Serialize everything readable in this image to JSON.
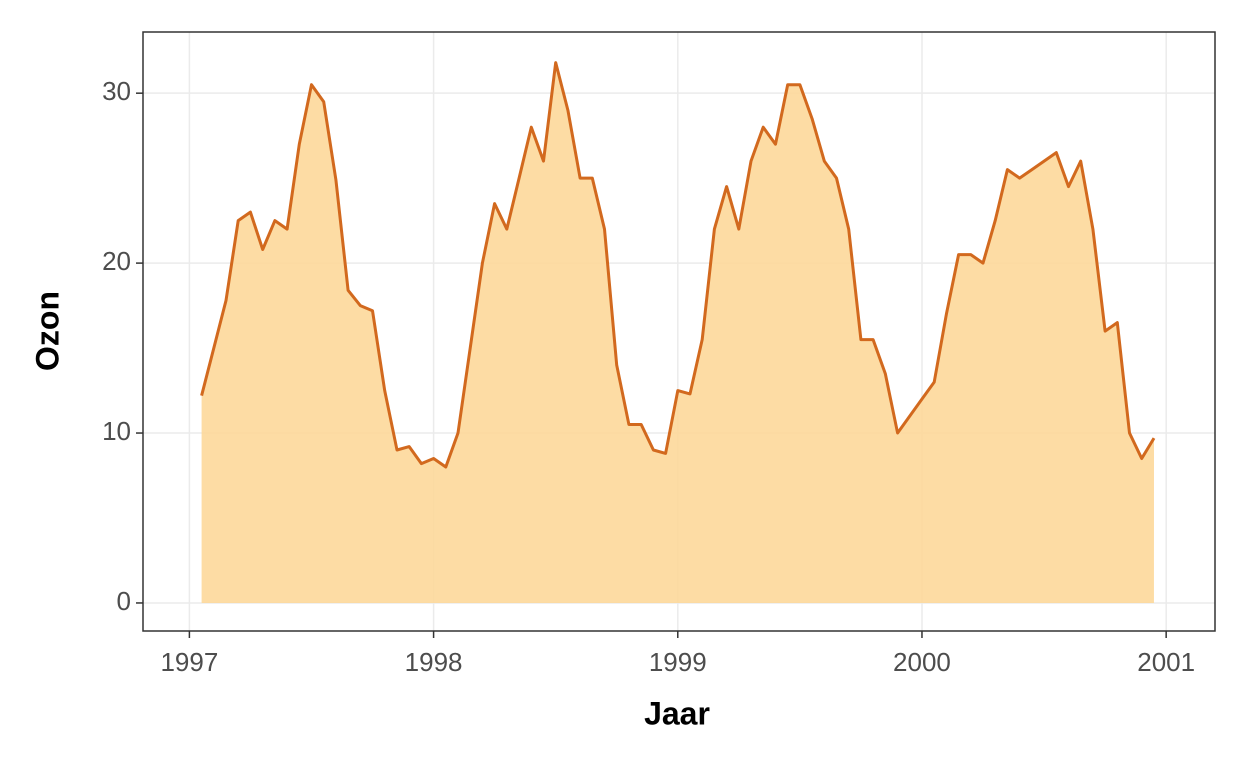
{
  "chart_data": {
    "type": "area",
    "x_label": "Jaar",
    "y_label": "Ozon",
    "x": [
      1997.05,
      1997.1,
      1997.15,
      1997.2,
      1997.25,
      1997.3,
      1997.35,
      1997.4,
      1997.45,
      1997.5,
      1997.55,
      1997.6,
      1997.65,
      1997.7,
      1997.75,
      1997.8,
      1997.85,
      1997.9,
      1997.95,
      1998.0,
      1998.05,
      1998.1,
      1998.15,
      1998.2,
      1998.25,
      1998.3,
      1998.35,
      1998.4,
      1998.45,
      1998.5,
      1998.55,
      1998.6,
      1998.65,
      1998.7,
      1998.75,
      1998.8,
      1998.85,
      1998.9,
      1998.95,
      1999.0,
      1999.05,
      1999.1,
      1999.15,
      1999.2,
      1999.25,
      1999.3,
      1999.35,
      1999.4,
      1999.45,
      1999.5,
      1999.55,
      1999.6,
      1999.65,
      1999.7,
      1999.75,
      1999.8,
      1999.85,
      1999.9,
      1999.95,
      2000.0,
      2000.05,
      2000.1,
      2000.15,
      2000.2,
      2000.25,
      2000.3,
      2000.35,
      2000.4,
      2000.45,
      2000.5,
      2000.55,
      2000.6,
      2000.65,
      2000.7,
      2000.75,
      2000.8,
      2000.85,
      2000.9,
      2000.95
    ],
    "values": [
      12.2,
      15,
      17.8,
      22.5,
      23,
      20.8,
      22.5,
      22,
      27,
      30.5,
      29.5,
      24.9,
      18.4,
      17.5,
      17.2,
      12.5,
      9,
      9.2,
      8.2,
      8.5,
      8,
      10,
      15,
      20,
      23.5,
      22,
      25,
      28,
      26,
      31.8,
      29,
      25,
      25,
      22,
      14,
      10.5,
      10.5,
      9,
      8.8,
      12.5,
      12.3,
      15.5,
      22,
      24.5,
      22,
      26,
      28,
      27,
      30.5,
      30.5,
      28.5,
      26,
      25,
      22,
      15.5,
      15.5,
      13.5,
      10,
      11,
      12,
      13,
      17,
      20.5,
      20.5,
      20,
      22.5,
      25.5,
      25,
      25.5,
      26,
      26.5,
      24.5,
      26,
      22,
      16,
      16.5,
      10,
      8.5,
      9.7
    ],
    "color": "#d2691e",
    "fill_color": "#fdd89a",
    "xlim": [
      1996.81,
      2001.2
    ],
    "xticks": [
      1997,
      1998,
      1999,
      2000,
      2001
    ],
    "ylim": [
      -1.65,
      33.6
    ],
    "yticks": [
      0,
      10,
      20,
      30
    ],
    "grid": true
  }
}
